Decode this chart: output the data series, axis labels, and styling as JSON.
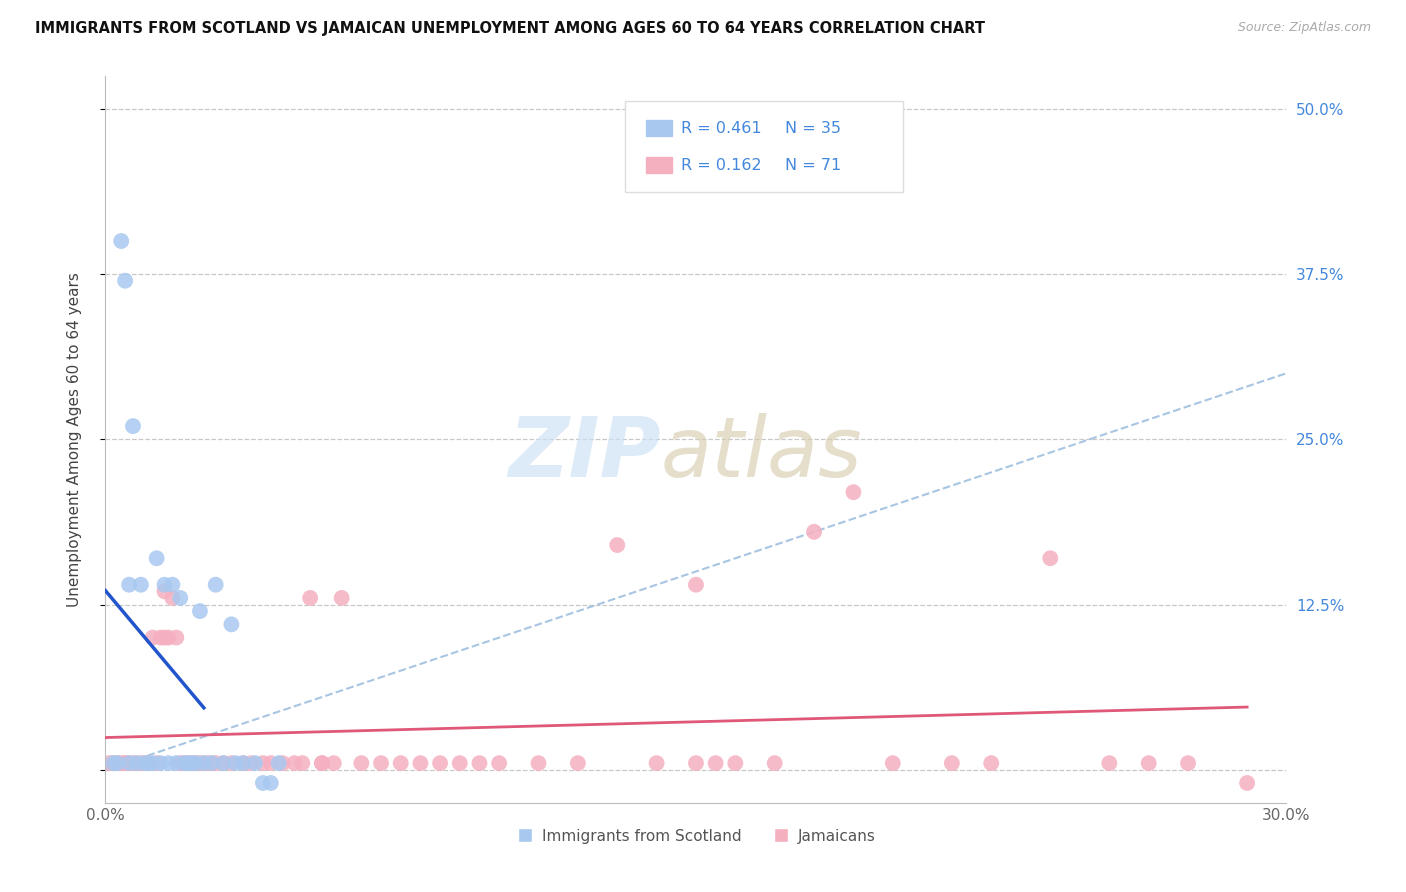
{
  "title": "IMMIGRANTS FROM SCOTLAND VS JAMAICAN UNEMPLOYMENT AMONG AGES 60 TO 64 YEARS CORRELATION CHART",
  "source": "Source: ZipAtlas.com",
  "ylabel": "Unemployment Among Ages 60 to 64 years",
  "xlim": [
    0.0,
    0.3
  ],
  "ylim": [
    -0.025,
    0.525
  ],
  "yticks": [
    0.0,
    0.125,
    0.25,
    0.375,
    0.5
  ],
  "xticks": [
    0.0,
    0.05,
    0.1,
    0.15,
    0.2,
    0.25,
    0.3
  ],
  "grid_color": "#c8c8c8",
  "bg_color": "#ffffff",
  "blue_dot_color": "#a8c8f0",
  "pink_dot_color": "#f5b0c0",
  "blue_line_color": "#2255cc",
  "pink_line_color": "#e05878",
  "diag_color": "#99bbdd",
  "right_tick_color": "#4488dd",
  "label_blue": "Immigrants from Scotland",
  "label_pink": "Jamaicans",
  "legend_color": "#4488dd",
  "blue_x": [
    0.002,
    0.003,
    0.004,
    0.005,
    0.006,
    0.006,
    0.007,
    0.008,
    0.009,
    0.01,
    0.011,
    0.012,
    0.013,
    0.014,
    0.015,
    0.016,
    0.017,
    0.018,
    0.019,
    0.02,
    0.021,
    0.022,
    0.023,
    0.024,
    0.025,
    0.027,
    0.028,
    0.03,
    0.032,
    0.033,
    0.035,
    0.038,
    0.04,
    0.042,
    0.044
  ],
  "blue_y": [
    0.005,
    0.005,
    0.4,
    0.37,
    0.14,
    0.005,
    0.26,
    0.005,
    0.14,
    0.005,
    0.005,
    0.005,
    0.16,
    0.005,
    0.14,
    0.005,
    0.14,
    0.005,
    0.13,
    0.005,
    0.005,
    0.005,
    0.005,
    0.12,
    0.005,
    0.005,
    0.14,
    0.005,
    0.11,
    0.005,
    0.005,
    0.005,
    -0.01,
    -0.01,
    0.005
  ],
  "pink_x": [
    0.001,
    0.002,
    0.003,
    0.004,
    0.005,
    0.005,
    0.006,
    0.007,
    0.008,
    0.009,
    0.01,
    0.011,
    0.012,
    0.013,
    0.014,
    0.015,
    0.016,
    0.017,
    0.018,
    0.019,
    0.02,
    0.021,
    0.022,
    0.023,
    0.024,
    0.025,
    0.026,
    0.027,
    0.028,
    0.03,
    0.032,
    0.035,
    0.037,
    0.04,
    0.042,
    0.045,
    0.048,
    0.05,
    0.052,
    0.055,
    0.058,
    0.06,
    0.065,
    0.07,
    0.075,
    0.08,
    0.085,
    0.09,
    0.1,
    0.11,
    0.12,
    0.13,
    0.14,
    0.15,
    0.155,
    0.16,
    0.17,
    0.18,
    0.19,
    0.2,
    0.215,
    0.225,
    0.24,
    0.255,
    0.265,
    0.275,
    0.015,
    0.055,
    0.095,
    0.15,
    0.29
  ],
  "pink_y": [
    0.005,
    0.005,
    0.005,
    0.005,
    0.005,
    0.005,
    0.005,
    0.005,
    0.005,
    0.005,
    0.005,
    0.005,
    0.1,
    0.005,
    0.1,
    0.135,
    0.1,
    0.13,
    0.1,
    0.005,
    0.005,
    0.005,
    0.005,
    0.005,
    0.005,
    0.005,
    0.005,
    0.005,
    0.005,
    0.005,
    0.005,
    0.005,
    0.005,
    0.005,
    0.005,
    0.005,
    0.005,
    0.005,
    0.13,
    0.005,
    0.005,
    0.13,
    0.005,
    0.005,
    0.005,
    0.005,
    0.005,
    0.005,
    0.005,
    0.005,
    0.005,
    0.17,
    0.005,
    0.14,
    0.005,
    0.005,
    0.005,
    0.18,
    0.21,
    0.005,
    0.005,
    0.005,
    0.16,
    0.005,
    0.005,
    0.005,
    0.1,
    0.005,
    0.005,
    0.005,
    -0.01
  ]
}
